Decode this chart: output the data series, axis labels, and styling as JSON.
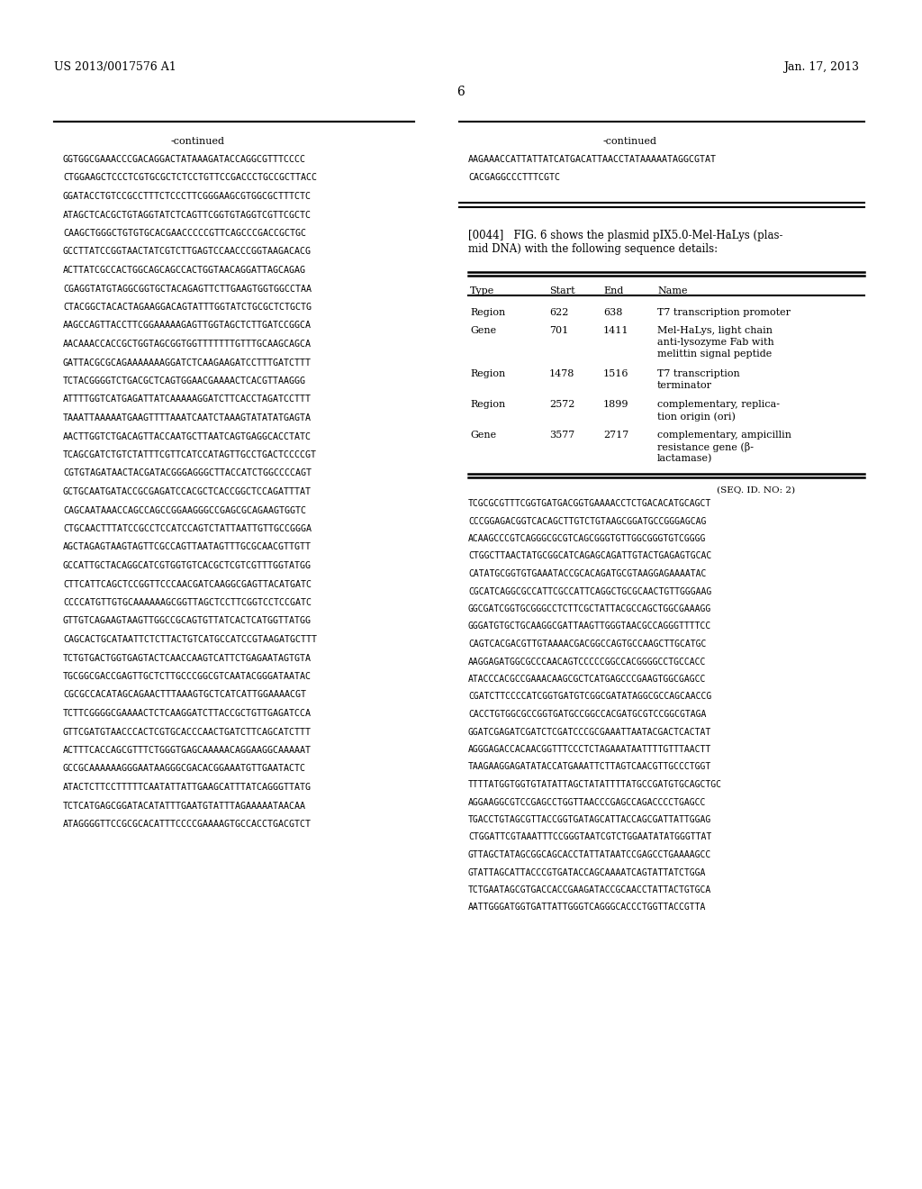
{
  "patent_number": "US 2013/0017576 A1",
  "date": "Jan. 17, 2013",
  "page_number": "6",
  "background_color": "#ffffff",
  "text_color": "#000000",
  "left_col_sequences": [
    "GGTGGCGAAACCCGACAGGACTATAAAGATACCAGGCGTTTCCCC",
    "CTGGAAGCTCCCTCGTGCGCTCTCCTGTTCCGACCCTGCCGCTTACC",
    "GGATACCTGTCCGCCTTTCTCCCTTCGGGAAGCGTGGCGCTTTCTC",
    "ATAGCTCACGCTGTAGGTATCTCAGTTCGGTGTAGGTCGTTCGCTC",
    "CAAGCTGGGCTGTGTGCACGAACCCCCGTTCAGCCCGACCGCTGC",
    "GCCTTATCCGGTAACTATCGTCTTGAGTCCAACCCGGTAAGACACG",
    "ACTTATCGCCACTGGCAGCAGCCACTGGTAACAGGATTAGCAGAG",
    "CGAGGTATGTAGGCGGTGCTACAGAGTTCTTGAAGTGGTGGCCTAA",
    "CTACGGCTACACTAGAAGGACAGTATTTGGTATCTGCGCTCTGCTG",
    "AAGCCAGTTACCTTCGGAAAAAGAGTTGGTAGCTCTTGATCCGGCA",
    "AACAAACCACCGCTGGTAGCGGTGGTTTTTTTGTTTGCAAGCAGCA",
    "GATTACGCGCAGAAAAAAAGGATCTCAAGAAGATCCTTTGATCTTT",
    "TCTACGGGGTCTGACGCTCAGTGGAACGAAAACTCACGTTAAGGG",
    "ATTTTGGTCATGAGATTATCAAAAAGGATCTTCACCTAGATCCTTT",
    "TAAATTAAAAATGAAGTTTTAAATCAATCTAAAGTATATATGAGTA",
    "AACTTGGTCTGACAGTTACCAATGCTTAATCAGTGAGGCACCTATC",
    "TCAGCGATCTGTCTATTTCGTTCATCCATAGTTGCCTGACTCCCCGT",
    "CGTGTAGATAACTACGATACGGGAGGGCTTACCATCTGGCCCCAGT",
    "GCTGCAATGATACCGCGAGATCCACGCTCACCGGCTCCAGATTTAT",
    "CAGCAATAAACCAGCCAGCCGGAAGGGCCGAGCGCAGAAGTGGTC",
    "CTGCAACTTTATCCGCCTCCATCCAGTCTATTAATTGTTGCCGGGA",
    "AGCTAGAGTAAGTAGTTCGCCAGTTAATAGTTTGCGCAACGTTGTT",
    "GCCATTGCTACAGGCATCGTGGTGTCACGCTCGTCGTTTGGTATGG",
    "CTTCATTCAGCTCCGGTTCCCAACGATCAAGGCGAGTTACATGATC",
    "CCCCATGTTGTGCAAAAAAGCGGTTAGCTCCTTCGGTCCTCCGATC",
    "GTTGTCAGAAGTAAGTTGGCCGCAGTGTTATCACTCATGGTTATGG",
    "CAGCACTGCATAATTCTCTTACTGTCATGCCATCCGTAAGATGCTTT",
    "TCTGTGACTGGTGAGTACTCAACCAAGTCATTCTGAGAATAGTGTA",
    "TGCGGCGACCGAGTTGCTCTTGCCCGGCGTCAATACGGGATAATAC",
    "CGCGCCACATAGCAGAACTTTAAAGTGCTCATCATTGGAAAACGT",
    "TCTTCGGGGCGAAAACTCTCAAGGATCTTACCGCTGTTGAGATCCA",
    "GTTCGATGTAACCCACTCGTGCACCCAACTGATCTTCAGCATCTTT",
    "ACTTTCACCAGCGTTTCTGGGTGAGCAAAAACAGGAAGGCAAAAAT",
    "GCCGCAAAAAAGGGAATAAGGGCGACACGGAAATGTTGAATACTC",
    "ATACTCTTCCTTTTTCAATATTATTGAAGCATTTATCAGGGTTATG",
    "TCTCATGAGCGGATACATATTTGAATGTATTTAGAAAAATAACAA",
    "ATAGGGGTTCCGCGCACATTTCCCCGAAAAGTGCCACCTGACGTCT"
  ],
  "right_col_seq1": [
    "AAGAAACCATTATTATCATGACATTAACCTATAAAAATAGGCGTAT",
    "CACGAGGCCCTTTCGTC"
  ],
  "paragraph_044": "[0044]   FIG. 6 shows the plasmid pIX5.0-Mel-HaLys (plasmid DNA) with the following sequence details:",
  "table_headers": [
    "Type",
    "Start",
    "End",
    "Name"
  ],
  "table_rows": [
    [
      "Region",
      "622",
      "638",
      "T7 transcription promoter"
    ],
    [
      "Gene",
      "701",
      "1411",
      "Mel-HaLys, light chain\nanti-lysozyme Fab with\nmelittin signal peptide"
    ],
    [
      "Region",
      "1478",
      "1516",
      "T7 transcription\nterminator"
    ],
    [
      "Region",
      "2572",
      "1899",
      "complementary, replica-\ntion origin (ori)"
    ],
    [
      "Gene",
      "3577",
      "2717",
      "complementary, ampicillin\nresistance gene (β-\nlactamase)"
    ]
  ],
  "seq_id_note": "(SEQ. ID. NO: 2)",
  "right_col_dna": [
    "TCGCGCGTTTCGGTGATGACGGTGAAAACCTCTGACACATGCAGCT",
    "CCCGGAGACGGTCACAGCTTGTCTGTAAGCGGATGCCGGGAGCAG",
    "ACAAGCCCGTCAGGGCGCGTCAGCGGGTGTTGGCGGGTGTCGGGG",
    "CTGGCTTAACTATGCGGCATCAGAGCAGATTGTACTGAGAGTGCAC",
    "CATATGCGGTGTGAAATACCGCACAGATGCGTAAGGAGAAAATAC",
    "CGCATCAGGCGCCATTCGCCATTCAGGCTGCGCAACTGTTGGGAAG",
    "GGCGATCGGTGCGGGCCTCTTCGCTATTACGCCAGCTGGCGAAAGG",
    "GGGATGTGCTGCAAGGCGATTAAGTTGGGTAACGCCAGGGTTTTCC",
    "CAGTCACGACGTTGTAAAACGACGGCCAGTGCCAAGCTTGCATGC",
    "AAGGAGATGGCGCCCAACAGTCCCCCGGCCACGGGGCCTGCCACC",
    "ATACCCACGCCGAAACAAGCGCTCATGAGCCCGAAGTGGCGAGCC",
    "CGATCTTCCCCATCGGTGATGTCGGCGATATAGGCGCCAGCAACCG",
    "CACCTGTGGCGCCGGTGATGCCGGCCACGATGCGTCCGGCGTAGA",
    "GGATCGAGATCGATCTCGATCCCGCGAAATTAATACGACTCACTAT",
    "AGGGAGACCACAACGGTTTCCCTCTAGAAATAATTTTGTTTAACTT",
    "TAAGAAGGAGATATACCATGAAATTCTTAGTCAACGTTGCCCTGGT",
    "TTTTATGGTGGTGTATATTAGCTATATTTTATGCCGATGTGCAGCTGC",
    "AGGAAGGCGTCCGAGCCTGGTTAACCCGAGCCAGACCCCTGAGCC",
    "TGACCTGTAGCGTTACCGGTGATAGCATTACCAGCGATTATTGGAG",
    "CTGGATTCGTAAATTTCCGGGTAATCGTCTGGAATATATGGGTTAT",
    "GTTAGCTATAGCGGCAGCACCTATTATAATCCGAGCCTGAAAAGCC",
    "GTATTAGCATTACCCGTGATACCAGCAAAATCAGTATTATCTGGA",
    "TCTGAATAGCGTGACCACCGAAGATACCGCAACCTATTACTGTGCA",
    "AATTGGGATGGTGATTATTGGGTCAGGGCACCCTGGTTACCGTTA"
  ]
}
